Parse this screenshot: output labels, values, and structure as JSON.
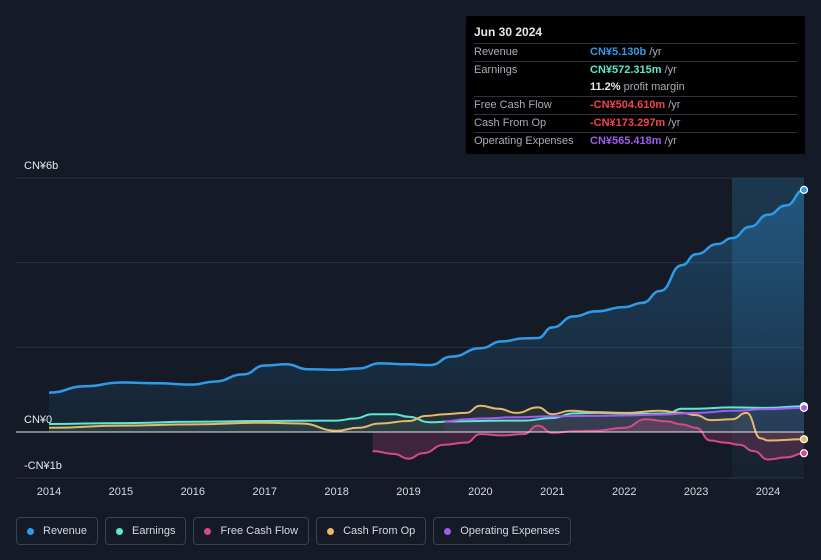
{
  "tooltip": {
    "date": "Jun 30 2024",
    "rows": [
      {
        "label": "Revenue",
        "value": "CN¥5.130b",
        "unit": "/yr",
        "color": "#2f9be8"
      },
      {
        "label": "Earnings",
        "value": "CN¥572.315m",
        "unit": "/yr",
        "color": "#5ee8d2"
      },
      {
        "label": "",
        "value": "11.2%",
        "unit": "profit margin",
        "color": "#e6e8ec"
      },
      {
        "label": "Free Cash Flow",
        "value": "-CN¥504.610m",
        "unit": "/yr",
        "color": "#f0454b"
      },
      {
        "label": "Cash From Op",
        "value": "-CN¥173.297m",
        "unit": "/yr",
        "color": "#f0454b"
      },
      {
        "label": "Operating Expenses",
        "value": "CN¥565.418m",
        "unit": "/yr",
        "color": "#a05cf0"
      }
    ]
  },
  "legend": [
    {
      "label": "Revenue",
      "color": "#2f9be8"
    },
    {
      "label": "Earnings",
      "color": "#5ee8d2"
    },
    {
      "label": "Free Cash Flow",
      "color": "#d44a8a"
    },
    {
      "label": "Cash From Op",
      "color": "#e8b86a"
    },
    {
      "label": "Operating Expenses",
      "color": "#a05cf0"
    }
  ],
  "chart_data": {
    "type": "line",
    "y_tick_labels": [
      "CN¥6b",
      "CN¥0",
      "-CN¥1b"
    ],
    "ylim": [
      -1,
      6
    ],
    "xlim": [
      2014.0,
      2024.5
    ],
    "x_tick_labels": [
      "2014",
      "2015",
      "2016",
      "2017",
      "2018",
      "2019",
      "2020",
      "2021",
      "2022",
      "2023",
      "2024"
    ],
    "grid": true,
    "legend_position": "bottom",
    "highlight_from": 2023.5,
    "series": [
      {
        "name": "Revenue",
        "color": "#2f9be8",
        "x": [
          2014.0,
          2014.5,
          2015.0,
          2015.5,
          2016.0,
          2016.3,
          2016.7,
          2017.0,
          2017.3,
          2017.6,
          2018.0,
          2018.3,
          2018.6,
          2019.0,
          2019.3,
          2019.6,
          2020.0,
          2020.3,
          2020.6,
          2020.8,
          2021.0,
          2021.3,
          2021.6,
          2022.0,
          2022.25,
          2022.5,
          2022.8,
          2023.0,
          2023.3,
          2023.5,
          2023.75,
          2024.0,
          2024.25,
          2024.5
        ],
        "y": [
          0.93,
          1.08,
          1.17,
          1.15,
          1.12,
          1.19,
          1.36,
          1.57,
          1.6,
          1.48,
          1.47,
          1.5,
          1.62,
          1.6,
          1.58,
          1.78,
          1.98,
          2.14,
          2.21,
          2.22,
          2.47,
          2.73,
          2.85,
          2.95,
          3.05,
          3.33,
          3.94,
          4.2,
          4.44,
          4.58,
          4.85,
          5.13,
          5.35,
          5.72
        ]
      },
      {
        "name": "Earnings",
        "color": "#5ee8d2",
        "x": [
          2014.0,
          2015.0,
          2016.0,
          2017.0,
          2018.0,
          2018.25,
          2018.5,
          2018.8,
          2019.0,
          2019.3,
          2019.6,
          2020.0,
          2020.3,
          2020.6,
          2021.0,
          2021.3,
          2021.6,
          2022.0,
          2022.3,
          2022.6,
          2022.8,
          2023.0,
          2023.5,
          2024.0,
          2024.5
        ],
        "y": [
          0.19,
          0.21,
          0.24,
          0.26,
          0.27,
          0.32,
          0.42,
          0.42,
          0.36,
          0.23,
          0.25,
          0.26,
          0.27,
          0.27,
          0.33,
          0.44,
          0.45,
          0.44,
          0.43,
          0.44,
          0.55,
          0.55,
          0.58,
          0.57,
          0.61
        ]
      },
      {
        "name": "Free Cash Flow",
        "color": "#d44a8a",
        "x": [
          2018.5,
          2018.8,
          2019.0,
          2019.2,
          2019.5,
          2019.8,
          2020.0,
          2020.3,
          2020.6,
          2020.8,
          2021.0,
          2021.3,
          2021.6,
          2022.0,
          2022.3,
          2022.6,
          2022.8,
          2023.0,
          2023.2,
          2023.4,
          2023.6,
          2023.8,
          2024.0,
          2024.25,
          2024.5
        ],
        "y": [
          -0.45,
          -0.52,
          -0.63,
          -0.5,
          -0.3,
          -0.25,
          -0.05,
          -0.08,
          -0.05,
          0.15,
          -0.02,
          0.02,
          0.03,
          0.1,
          0.3,
          0.25,
          0.18,
          0.1,
          -0.2,
          -0.25,
          -0.3,
          -0.45,
          -0.65,
          -0.6,
          -0.5
        ]
      },
      {
        "name": "Cash From Op",
        "color": "#e8b86a",
        "x": [
          2014.0,
          2015.0,
          2016.0,
          2017.0,
          2017.5,
          2018.0,
          2018.3,
          2018.6,
          2019.0,
          2019.25,
          2019.5,
          2019.8,
          2020.0,
          2020.25,
          2020.5,
          2020.8,
          2021.0,
          2021.25,
          2021.6,
          2022.0,
          2022.5,
          2022.8,
          2023.0,
          2023.2,
          2023.5,
          2023.7,
          2023.9,
          2024.0,
          2024.5
        ],
        "y": [
          0.1,
          0.15,
          0.18,
          0.22,
          0.2,
          0.03,
          0.1,
          0.2,
          0.26,
          0.38,
          0.42,
          0.45,
          0.62,
          0.55,
          0.45,
          0.58,
          0.42,
          0.5,
          0.47,
          0.45,
          0.5,
          0.45,
          0.4,
          0.28,
          0.3,
          0.45,
          -0.15,
          -0.2,
          -0.17
        ]
      },
      {
        "name": "Operating Expenses",
        "color": "#a05cf0",
        "x": [
          2019.5,
          2019.8,
          2020.0,
          2020.5,
          2021.0,
          2021.5,
          2022.0,
          2022.5,
          2023.0,
          2023.5,
          2024.0,
          2024.5
        ],
        "y": [
          0.25,
          0.3,
          0.32,
          0.35,
          0.37,
          0.38,
          0.39,
          0.41,
          0.45,
          0.5,
          0.54,
          0.57
        ]
      }
    ]
  }
}
